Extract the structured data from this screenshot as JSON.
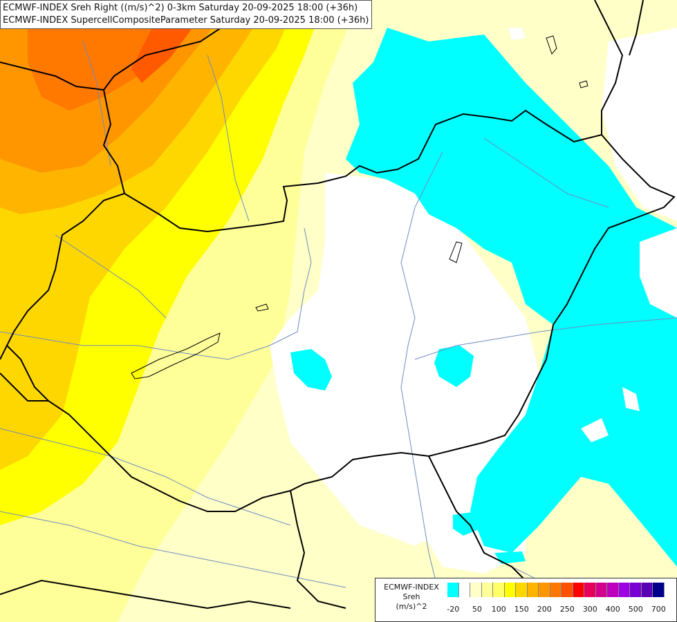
{
  "title": {
    "line1": "ECMWF-INDEX Sreh Right ((m/s)^2) 0-3km Saturday 20-09-2025 18:00 (+36h)",
    "line2": "ECMWF-INDEX SupercellCompositeParameter Saturday 20-09-2025 18:00 (+36h)"
  },
  "legend": {
    "line1": "ECMWF-INDEX",
    "line2": "Sreh",
    "line3": "(m/s)^2",
    "colors": [
      "#00ffff",
      "#ffffff",
      "#ffffc8",
      "#ffff9a",
      "#ffff66",
      "#ffff00",
      "#ffd700",
      "#ffb400",
      "#ff9600",
      "#ff7800",
      "#ff5000",
      "#ff0000",
      "#e6005a",
      "#d2008c",
      "#be00be",
      "#a000e6",
      "#7800d2",
      "#5a00b4",
      "#00008c"
    ],
    "ticks": [
      "-20",
      "50",
      "100",
      "150",
      "200",
      "250",
      "300",
      "400",
      "500",
      "700"
    ]
  },
  "colors": {
    "background": "#ffffc8",
    "cyan": "#00ffff",
    "white": "#ffffff",
    "yellow_light": "#ffff9a",
    "yellow": "#ffff00",
    "gold": "#ffd700",
    "orange": "#ffb400",
    "orange_dark": "#ff9600",
    "red_orange": "#ff7800",
    "border": "#000000",
    "river": "#6e8cbe"
  }
}
